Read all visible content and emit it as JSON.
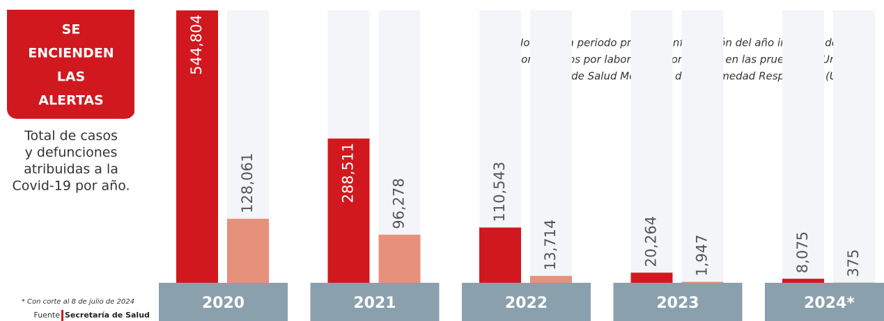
{
  "chart_data": {
    "type": "bar",
    "title_lines": [
      "SE",
      "ENCIENDEN",
      "LAS",
      "ALERTAS"
    ],
    "subtitle_lines": [
      "Total de casos",
      "y defunciones",
      "atribuidas a la",
      "Covid-19 por año."
    ],
    "note_lines": [
      "Nota: Cada periodo presenta información del año indicado de casos",
      "confirmados por laboratorio por RT-PCR en las pruebas de Unidades",
      "de Salud Monitoras de Enfermedad Respiratoria  (USMER)"
    ],
    "footnote": "* Con corte al 8 de julio de 2024",
    "source_label": "Fuente",
    "source": "Secretaría de Salud",
    "categories": [
      "2020",
      "2021",
      "2022",
      "2023",
      "2024*"
    ],
    "series": [
      {
        "color": "#d1181f",
        "values": [
          544804,
          288511,
          110543,
          20264,
          8075
        ],
        "value_labels": [
          "544,804",
          "288,511",
          "110,543",
          "20,264",
          "8,075"
        ]
      },
      {
        "color": "#e8917a",
        "values": [
          128061,
          96278,
          13714,
          1947,
          375
        ],
        "value_labels": [
          "128,061",
          "96,278",
          "13,714",
          "1,947",
          "375"
        ]
      }
    ]
  }
}
